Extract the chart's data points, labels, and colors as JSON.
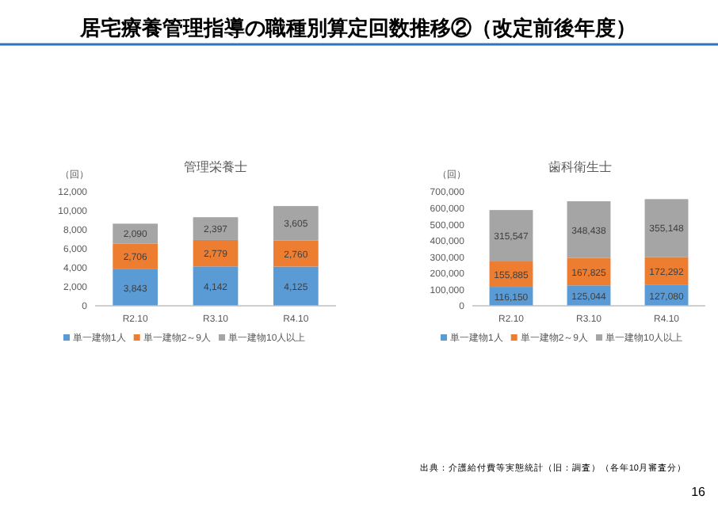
{
  "chart_data": [
    {
      "type": "bar",
      "title": "管理栄養士",
      "ylabel": "（回）",
      "categories": [
        "R2.10",
        "R3.10",
        "R4.10"
      ],
      "stacked": true,
      "legend": "bottom",
      "grid": false,
      "ylim": [
        0,
        12000
      ],
      "yticks": [
        {
          "value": 0,
          "label": "0"
        },
        {
          "value": 2000,
          "label": "2,000"
        },
        {
          "value": 4000,
          "label": "4,000"
        },
        {
          "value": 6000,
          "label": "6,000"
        },
        {
          "value": 8000,
          "label": "8,000"
        },
        {
          "value": 10000,
          "label": "10,000"
        },
        {
          "value": 12000,
          "label": "12,000"
        }
      ],
      "series": [
        {
          "name": "単一建物1人",
          "color": "#5b9bd5",
          "values": [
            3843,
            4142,
            4125
          ],
          "value_labels": [
            "3,843",
            "4,142",
            "4,125"
          ]
        },
        {
          "name": "単一建物2～9人",
          "color": "#ed7d31",
          "values": [
            2706,
            2779,
            2760
          ],
          "value_labels": [
            "2,706",
            "2,779",
            "2,760"
          ]
        },
        {
          "name": "単一建物10人以上",
          "color": "#a5a5a5",
          "values": [
            2090,
            2397,
            3605
          ],
          "value_labels": [
            "2,090",
            "2,397",
            "3,605"
          ]
        }
      ],
      "annotations": [
        "居宅療養管理指導の職種別算定回数推移②（改定前後年度）"
      ]
    },
    {
      "type": "bar",
      "title": "歯科衛生士",
      "ylabel": "（回）",
      "categories": [
        "R2.10",
        "R3.10",
        "R4.10"
      ],
      "stacked": true,
      "legend": "bottom",
      "grid": false,
      "ylim": [
        0,
        700000
      ],
      "yticks": [
        {
          "value": 0,
          "label": "0"
        },
        {
          "value": 100000,
          "label": "100,000"
        },
        {
          "value": 200000,
          "label": "200,000"
        },
        {
          "value": 300000,
          "label": "300,000"
        },
        {
          "value": 400000,
          "label": "400,000"
        },
        {
          "value": 500000,
          "label": "500,000"
        },
        {
          "value": 600000,
          "label": "600,000"
        },
        {
          "value": 700000,
          "label": "700,000"
        }
      ],
      "series": [
        {
          "name": "単一建物1人",
          "color": "#5b9bd5",
          "values": [
            116150,
            125044,
            127080
          ],
          "value_labels": [
            "116,150",
            "125,044",
            "127,080"
          ]
        },
        {
          "name": "単一建物2～9人",
          "color": "#ed7d31",
          "values": [
            155885,
            167825,
            172292
          ],
          "value_labels": [
            "155,885",
            "167,825",
            "172,292"
          ]
        },
        {
          "name": "単一建物10人以上",
          "color": "#a5a5a5",
          "values": [
            315547,
            348438,
            355148
          ],
          "value_labels": [
            "315,547",
            "348,438",
            "355,148"
          ]
        }
      ],
      "annotations": [
        "出典：介護給付費等実態統計（旧：調査）（各年10月審査分）",
        "16"
      ]
    }
  ]
}
